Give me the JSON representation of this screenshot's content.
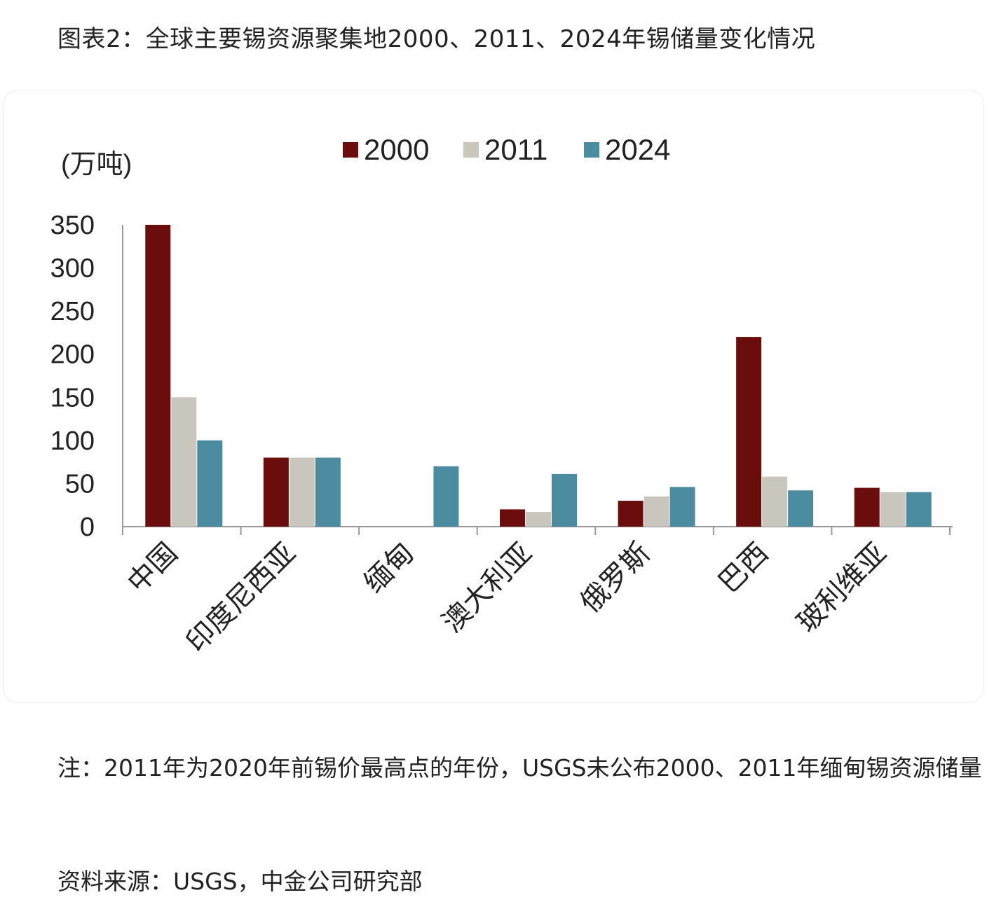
{
  "title": "图表2：全球主要锡资源聚集地2000、2011、2024年锡储量变化情况",
  "note": "注：2011年为2020年前锡价最高点的年份，USGS未公布2000、2011年缅甸锡资源储量",
  "source": "资料来源：USGS，中金公司研究部",
  "chart_data": {
    "type": "bar",
    "ylabel": "(万吨)",
    "ylim": [
      0,
      350
    ],
    "yticks": [
      0,
      50,
      100,
      150,
      200,
      250,
      300,
      350
    ],
    "categories": [
      "中国",
      "印度尼西亚",
      "缅甸",
      "澳大利亚",
      "俄罗斯",
      "巴西",
      "玻利维亚"
    ],
    "series": [
      {
        "name": "2000",
        "color": "#6b0d0d",
        "values": [
          350,
          80,
          null,
          20,
          30,
          220,
          45
        ]
      },
      {
        "name": "2011",
        "color": "#c8c6bd",
        "values": [
          150,
          80,
          null,
          17,
          35,
          58,
          40
        ]
      },
      {
        "name": "2024",
        "color": "#4b8ca0",
        "values": [
          100,
          80,
          70,
          61,
          46,
          42,
          40
        ]
      }
    ],
    "legend_position": "top-center",
    "grid": false
  }
}
